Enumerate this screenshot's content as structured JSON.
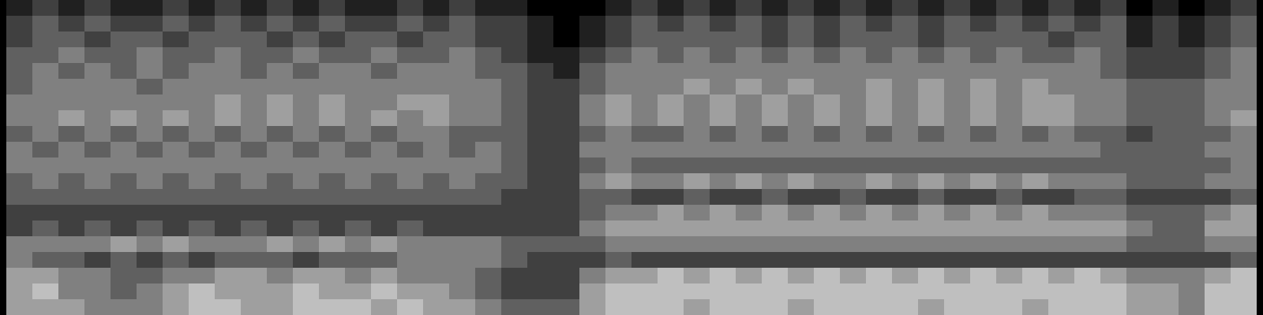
{
  "chart_data": {
    "type": "heatmap",
    "tick_labels": false,
    "zlim": [
      0,
      8
    ],
    "cells": [
      [
        1,
        2,
        1,
        2,
        1,
        1,
        2,
        1,
        2,
        1,
        2,
        1,
        2,
        1,
        1,
        2,
        1,
        2,
        1,
        1,
        0,
        0,
        0,
        1,
        2,
        1,
        2,
        1,
        2,
        1,
        2,
        1,
        2,
        1,
        2,
        1,
        2,
        1,
        2,
        1,
        2,
        1,
        2,
        0,
        1,
        0,
        1,
        2
      ],
      [
        2,
        3,
        2,
        3,
        2,
        2,
        3,
        2,
        3,
        2,
        3,
        2,
        3,
        2,
        2,
        3,
        2,
        3,
        2,
        2,
        1,
        0,
        1,
        2,
        3,
        2,
        3,
        2,
        3,
        2,
        3,
        2,
        3,
        2,
        3,
        2,
        3,
        2,
        3,
        2,
        3,
        2,
        3,
        1,
        2,
        1,
        2,
        3
      ],
      [
        2,
        3,
        3,
        2,
        3,
        3,
        2,
        3,
        3,
        3,
        2,
        3,
        2,
        3,
        3,
        2,
        3,
        3,
        2,
        2,
        1,
        0,
        1,
        2,
        3,
        3,
        3,
        3,
        3,
        2,
        3,
        2,
        3,
        3,
        3,
        2,
        3,
        3,
        3,
        3,
        2,
        3,
        3,
        1,
        2,
        1,
        2,
        3
      ],
      [
        3,
        3,
        4,
        3,
        3,
        4,
        3,
        3,
        4,
        3,
        3,
        4,
        3,
        3,
        4,
        3,
        3,
        4,
        3,
        2,
        1,
        1,
        2,
        3,
        4,
        3,
        4,
        3,
        4,
        3,
        4,
        3,
        4,
        3,
        4,
        3,
        4,
        3,
        4,
        3,
        3,
        4,
        3,
        2,
        2,
        2,
        3,
        4
      ],
      [
        3,
        4,
        3,
        4,
        3,
        4,
        3,
        4,
        4,
        3,
        4,
        3,
        4,
        4,
        3,
        4,
        4,
        4,
        3,
        3,
        2,
        1,
        3,
        4,
        4,
        4,
        4,
        4,
        4,
        4,
        4,
        4,
        4,
        4,
        4,
        4,
        4,
        4,
        4,
        4,
        4,
        4,
        3,
        2,
        2,
        2,
        3,
        4
      ],
      [
        3,
        4,
        4,
        4,
        4,
        3,
        4,
        4,
        4,
        4,
        4,
        4,
        4,
        4,
        4,
        4,
        4,
        4,
        4,
        3,
        2,
        2,
        3,
        4,
        4,
        4,
        5,
        4,
        5,
        4,
        5,
        4,
        4,
        5,
        4,
        5,
        4,
        5,
        4,
        5,
        4,
        4,
        4,
        3,
        3,
        3,
        4,
        4
      ],
      [
        4,
        4,
        4,
        4,
        4,
        4,
        4,
        4,
        5,
        4,
        5,
        4,
        5,
        4,
        4,
        5,
        5,
        4,
        4,
        3,
        2,
        2,
        4,
        5,
        4,
        5,
        4,
        5,
        4,
        5,
        4,
        5,
        4,
        5,
        4,
        5,
        4,
        5,
        4,
        5,
        5,
        4,
        4,
        3,
        3,
        3,
        4,
        4
      ],
      [
        4,
        4,
        5,
        4,
        5,
        4,
        5,
        4,
        5,
        4,
        5,
        4,
        5,
        4,
        5,
        4,
        5,
        4,
        4,
        3,
        2,
        2,
        4,
        5,
        4,
        5,
        4,
        5,
        4,
        5,
        4,
        5,
        4,
        5,
        4,
        5,
        4,
        5,
        4,
        5,
        5,
        4,
        4,
        3,
        3,
        3,
        4,
        5
      ],
      [
        3,
        4,
        3,
        4,
        3,
        4,
        3,
        4,
        3,
        4,
        3,
        4,
        3,
        4,
        3,
        4,
        4,
        3,
        3,
        3,
        2,
        2,
        3,
        4,
        3,
        3,
        4,
        3,
        4,
        3,
        4,
        3,
        4,
        3,
        4,
        3,
        4,
        3,
        4,
        3,
        4,
        3,
        3,
        2,
        3,
        3,
        3,
        4
      ],
      [
        4,
        3,
        4,
        3,
        4,
        3,
        4,
        3,
        4,
        3,
        4,
        3,
        4,
        3,
        4,
        3,
        4,
        3,
        4,
        3,
        2,
        2,
        4,
        4,
        4,
        4,
        4,
        4,
        4,
        4,
        4,
        4,
        4,
        4,
        4,
        4,
        4,
        4,
        4,
        4,
        4,
        4,
        3,
        3,
        3,
        3,
        4,
        4
      ],
      [
        4,
        4,
        4,
        4,
        4,
        4,
        4,
        4,
        4,
        4,
        4,
        4,
        4,
        4,
        4,
        4,
        4,
        4,
        4,
        3,
        2,
        2,
        3,
        4,
        3,
        3,
        3,
        3,
        3,
        3,
        3,
        3,
        3,
        3,
        3,
        3,
        3,
        3,
        3,
        3,
        3,
        3,
        3,
        3,
        3,
        3,
        3,
        4
      ],
      [
        3,
        4,
        3,
        4,
        3,
        4,
        3,
        4,
        3,
        4,
        3,
        4,
        3,
        4,
        3,
        4,
        3,
        4,
        3,
        3,
        2,
        2,
        4,
        5,
        4,
        4,
        5,
        4,
        5,
        4,
        5,
        4,
        4,
        5,
        4,
        5,
        4,
        5,
        4,
        5,
        4,
        4,
        4,
        3,
        3,
        3,
        4,
        4
      ],
      [
        3,
        3,
        3,
        3,
        3,
        3,
        3,
        3,
        3,
        3,
        3,
        3,
        3,
        3,
        3,
        3,
        3,
        3,
        3,
        2,
        2,
        2,
        3,
        3,
        2,
        2,
        3,
        2,
        2,
        3,
        2,
        2,
        3,
        2,
        2,
        3,
        2,
        2,
        3,
        2,
        2,
        3,
        3,
        2,
        2,
        2,
        2,
        3
      ],
      [
        2,
        2,
        2,
        2,
        2,
        2,
        2,
        2,
        2,
        2,
        2,
        2,
        2,
        2,
        2,
        2,
        2,
        2,
        2,
        2,
        2,
        2,
        3,
        4,
        4,
        5,
        4,
        5,
        4,
        5,
        4,
        5,
        4,
        5,
        4,
        5,
        4,
        5,
        4,
        5,
        4,
        4,
        4,
        3,
        3,
        3,
        4,
        5
      ],
      [
        2,
        3,
        2,
        3,
        2,
        3,
        2,
        3,
        2,
        3,
        2,
        3,
        2,
        3,
        2,
        3,
        2,
        2,
        2,
        2,
        2,
        2,
        4,
        5,
        5,
        5,
        5,
        5,
        5,
        5,
        5,
        5,
        5,
        5,
        5,
        5,
        5,
        5,
        5,
        5,
        5,
        5,
        5,
        4,
        3,
        3,
        5,
        5
      ],
      [
        4,
        4,
        4,
        4,
        5,
        4,
        5,
        4,
        4,
        4,
        5,
        4,
        5,
        4,
        5,
        4,
        4,
        4,
        4,
        3,
        3,
        3,
        3,
        4,
        4,
        4,
        4,
        4,
        4,
        4,
        4,
        4,
        4,
        4,
        4,
        4,
        4,
        4,
        4,
        4,
        4,
        4,
        4,
        3,
        3,
        3,
        4,
        4
      ],
      [
        4,
        3,
        3,
        2,
        3,
        2,
        3,
        2,
        3,
        3,
        3,
        2,
        3,
        3,
        3,
        4,
        4,
        4,
        4,
        3,
        2,
        2,
        2,
        3,
        2,
        2,
        2,
        2,
        2,
        2,
        2,
        2,
        2,
        2,
        2,
        2,
        2,
        2,
        2,
        2,
        2,
        2,
        2,
        2,
        2,
        2,
        2,
        3
      ],
      [
        5,
        5,
        4,
        4,
        3,
        3,
        4,
        4,
        5,
        5,
        4,
        5,
        5,
        4,
        5,
        4,
        4,
        4,
        3,
        2,
        2,
        2,
        4,
        5,
        5,
        6,
        5,
        6,
        5,
        6,
        5,
        6,
        5,
        6,
        5,
        6,
        5,
        6,
        5,
        6,
        5,
        6,
        5,
        4,
        4,
        4,
        5,
        6
      ],
      [
        5,
        6,
        4,
        4,
        3,
        4,
        5,
        6,
        5,
        5,
        5,
        6,
        5,
        5,
        6,
        5,
        5,
        4,
        3,
        2,
        2,
        2,
        5,
        6,
        6,
        6,
        6,
        6,
        6,
        6,
        6,
        6,
        6,
        6,
        6,
        6,
        6,
        6,
        6,
        6,
        6,
        6,
        6,
        5,
        5,
        4,
        6,
        6
      ],
      [
        5,
        5,
        5,
        4,
        4,
        4,
        5,
        6,
        6,
        5,
        5,
        6,
        6,
        6,
        5,
        6,
        5,
        5,
        4,
        3,
        3,
        3,
        5,
        6,
        6,
        6,
        5,
        6,
        6,
        6,
        5,
        6,
        6,
        6,
        6,
        5,
        6,
        6,
        6,
        5,
        6,
        6,
        6,
        5,
        5,
        4,
        6,
        6
      ]
    ]
  }
}
